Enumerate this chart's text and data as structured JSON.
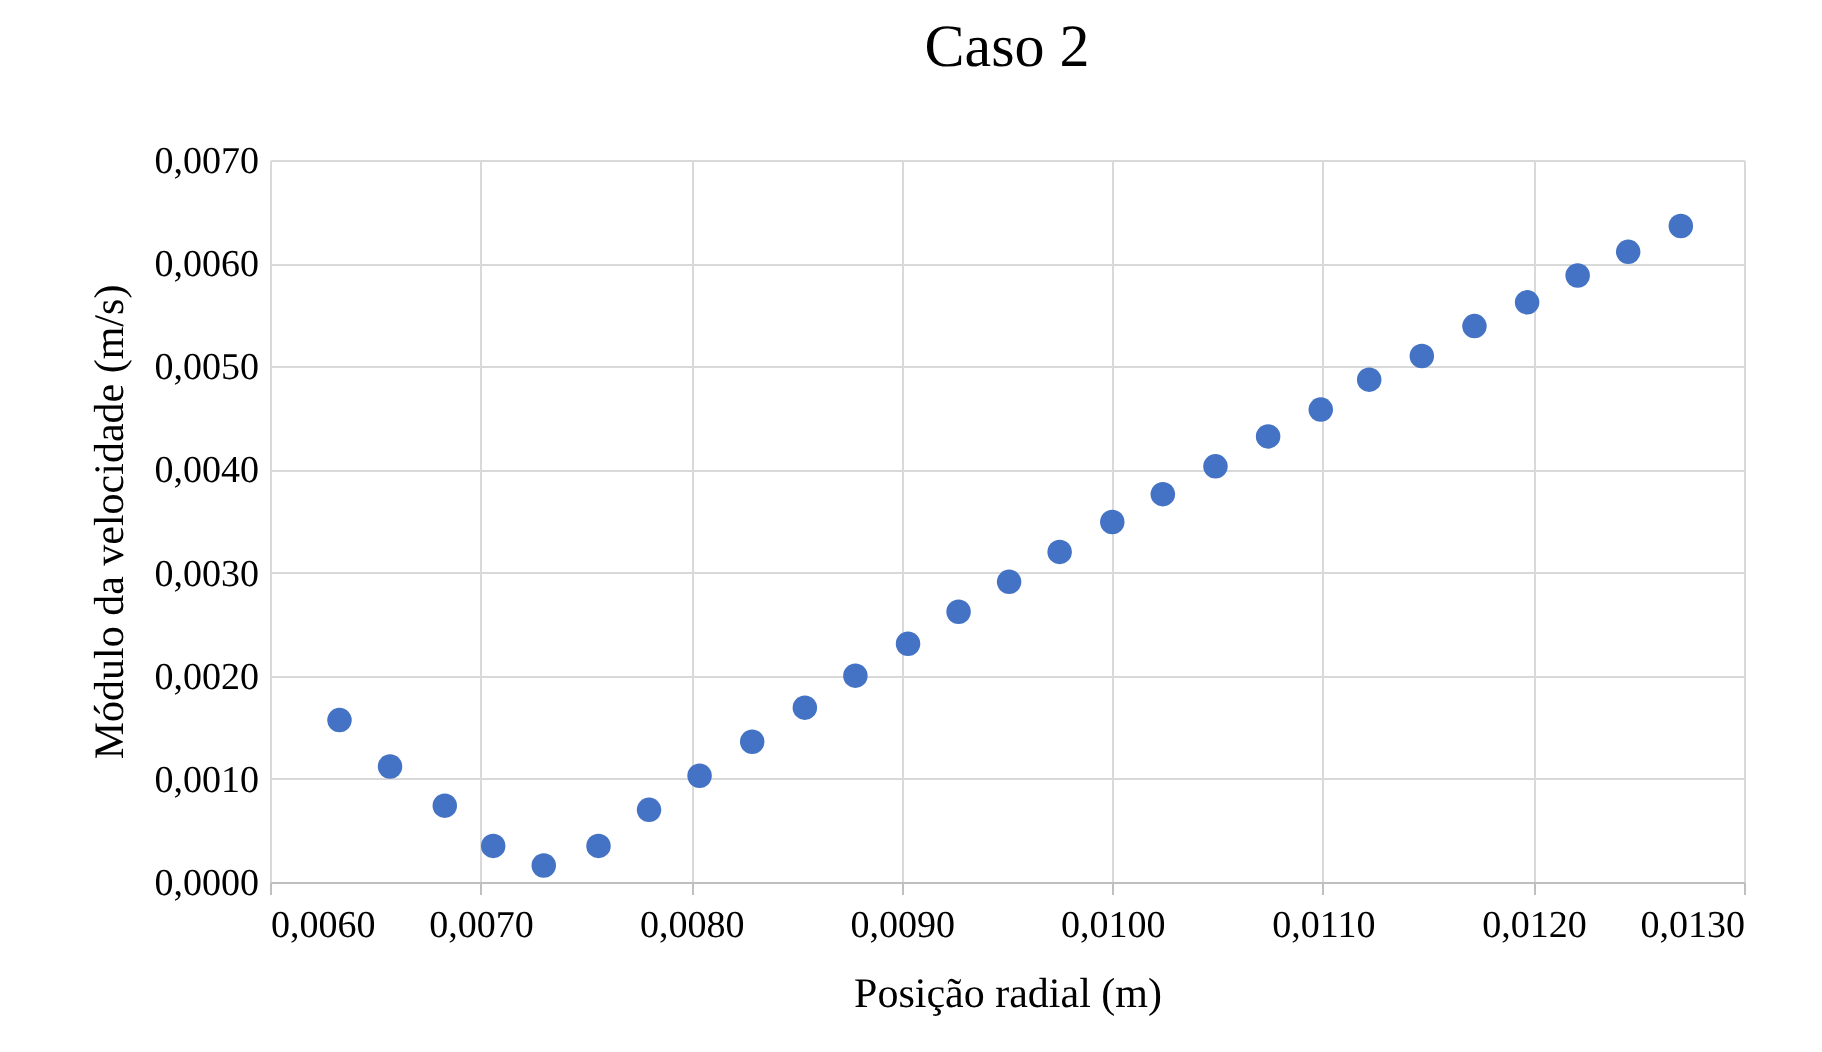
{
  "chart_data": {
    "type": "scatter",
    "title": "Caso 2",
    "xlabel": "Posição radial (m)",
    "ylabel": "Módulo da velocidade (m/s)",
    "x": [
      0.00633,
      0.00657,
      0.00683,
      0.00706,
      0.0073,
      0.00756,
      0.0078,
      0.00804,
      0.00829,
      0.00854,
      0.00878,
      0.00903,
      0.00927,
      0.00951,
      0.00975,
      0.01,
      0.01024,
      0.01049,
      0.01074,
      0.01099,
      0.01122,
      0.01147,
      0.01172,
      0.01197,
      0.01221,
      0.01245,
      0.0127
    ],
    "series": [
      {
        "color": "#4472c4",
        "values": [
          0.00157,
          0.00112,
          0.00074,
          0.00035,
          0.00016,
          0.00035,
          0.0007,
          0.00103,
          0.00136,
          0.00169,
          0.002,
          0.00231,
          0.00262,
          0.00291,
          0.0032,
          0.00349,
          0.00376,
          0.00403,
          0.00432,
          0.00458,
          0.00487,
          0.0051,
          0.00539,
          0.00562,
          0.00588,
          0.00611,
          0.00636
        ]
      }
    ],
    "xlim": [
      0.006,
      0.013
    ],
    "xticks": [
      {
        "value": 0.006,
        "label": "0,0060"
      },
      {
        "value": 0.007,
        "label": "0,0070"
      },
      {
        "value": 0.008,
        "label": "0,0080"
      },
      {
        "value": 0.009,
        "label": "0,0090"
      },
      {
        "value": 0.01,
        "label": "0,0100"
      },
      {
        "value": 0.011,
        "label": "0,0110"
      },
      {
        "value": 0.012,
        "label": "0,0120"
      },
      {
        "value": 0.013,
        "label": "0,0130"
      }
    ],
    "ylim": [
      0,
      0.007
    ],
    "yticks": [
      {
        "value": 0,
        "label": "0,0000"
      },
      {
        "value": 0.001,
        "label": "0,0010"
      },
      {
        "value": 0.002,
        "label": "0,0020"
      },
      {
        "value": 0.003,
        "label": "0,0030"
      },
      {
        "value": 0.004,
        "label": "0,0040"
      },
      {
        "value": 0.005,
        "label": "0,0050"
      },
      {
        "value": 0.006,
        "label": "0,0060"
      },
      {
        "value": 0.007,
        "label": "0,0070"
      }
    ],
    "grid": true,
    "marker": "circle"
  }
}
